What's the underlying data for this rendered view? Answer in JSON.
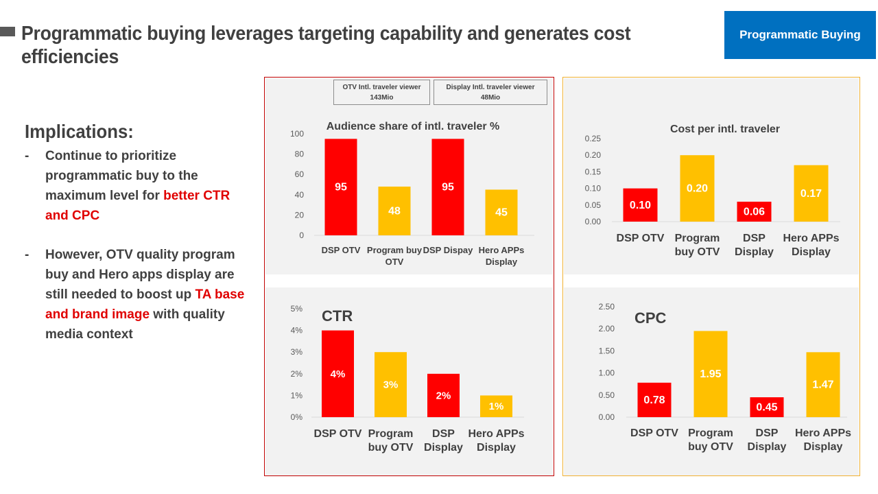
{
  "header": {
    "title": "Programmatic buying leverages targeting capability and generates cost efficiencies",
    "tag": "Programmatic Buying"
  },
  "implications": {
    "heading": "Implications:",
    "bullets": [
      {
        "dash": "-",
        "plain": "Continue to prioritize programmatic buy to the maximum level for ",
        "highlight": "better CTR and CPC",
        "tail": ""
      },
      {
        "dash": "-",
        "plain": "However, OTV quality program buy and Hero apps display are still needed to boost up ",
        "highlight": "TA base and brand image",
        "tail": " with quality media context"
      }
    ]
  },
  "info_boxes": [
    {
      "line1": "OTV Intl. traveler viewer",
      "line2": "143Mio"
    },
    {
      "line1": "Display Intl. traveler viewer",
      "line2": "48Mio"
    }
  ],
  "colors": {
    "red": "#ff0000",
    "yellow": "#ffc000",
    "panel_bg": "#f2f2f2",
    "red_frame": "#c00000",
    "yellow_frame": "#f0b030",
    "tag_blue": "#0070c0"
  },
  "chart_data": [
    {
      "id": "audience",
      "type": "bar",
      "title": "Audience share of intl. traveler %",
      "categories": [
        [
          "DSP OTV"
        ],
        [
          "Program buy",
          "OTV"
        ],
        [
          "DSP Dispay"
        ],
        [
          "Hero APPs",
          "Display"
        ]
      ],
      "values": [
        95,
        48,
        95,
        45
      ],
      "data_labels": [
        "95",
        "48",
        "95",
        "45"
      ],
      "colors": [
        "#ff0000",
        "#ffc000",
        "#ff0000",
        "#ffc000"
      ],
      "ylim": [
        0,
        100
      ],
      "yticks": [
        "0",
        "20",
        "40",
        "60",
        "80",
        "100"
      ]
    },
    {
      "id": "cost",
      "type": "bar",
      "title": "Cost per intl. traveler",
      "categories": [
        [
          "DSP OTV"
        ],
        [
          "Program",
          "buy OTV"
        ],
        [
          "DSP",
          "Display"
        ],
        [
          "Hero APPs",
          "Display"
        ]
      ],
      "values": [
        0.1,
        0.2,
        0.06,
        0.17
      ],
      "data_labels": [
        "0.10",
        "0.20",
        "0.06",
        "0.17"
      ],
      "colors": [
        "#ff0000",
        "#ffc000",
        "#ff0000",
        "#ffc000"
      ],
      "ylim": [
        0,
        0.25
      ],
      "yticks": [
        "0.00",
        "0.05",
        "0.10",
        "0.15",
        "0.20",
        "0.25"
      ]
    },
    {
      "id": "ctr",
      "type": "bar",
      "title": "CTR",
      "categories": [
        [
          "DSP OTV"
        ],
        [
          "Program",
          "buy OTV"
        ],
        [
          "DSP",
          "Display"
        ],
        [
          "Hero APPs",
          "Display"
        ]
      ],
      "values": [
        4,
        3,
        2,
        1
      ],
      "data_labels": [
        "4%",
        "3%",
        "2%",
        "1%"
      ],
      "colors": [
        "#ff0000",
        "#ffc000",
        "#ff0000",
        "#ffc000"
      ],
      "ylim": [
        0,
        5
      ],
      "yticks": [
        "0%",
        "1%",
        "2%",
        "3%",
        "4%",
        "5%"
      ]
    },
    {
      "id": "cpc",
      "type": "bar",
      "title": "CPC",
      "categories": [
        [
          "DSP OTV"
        ],
        [
          "Program",
          "buy OTV"
        ],
        [
          "DSP",
          "Display"
        ],
        [
          "Hero APPs",
          "Display"
        ]
      ],
      "values": [
        0.78,
        1.95,
        0.45,
        1.47
      ],
      "data_labels": [
        "0.78",
        "1.95",
        "0.45",
        "1.47"
      ],
      "colors": [
        "#ff0000",
        "#ffc000",
        "#ff0000",
        "#ffc000"
      ],
      "ylim": [
        0,
        2.5
      ],
      "yticks": [
        "0.00",
        "0.50",
        "1.00",
        "1.50",
        "2.00",
        "2.50"
      ]
    }
  ]
}
